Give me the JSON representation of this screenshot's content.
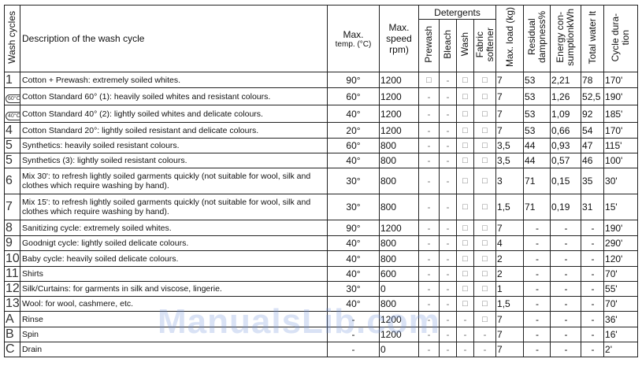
{
  "headers": {
    "wash_cycles": "Wash cycles",
    "description": "Description of the wash cycle",
    "max_temp": "Max. temp. (°C)",
    "max_temp_l1": "Max.",
    "max_temp_l2": "temp. (°C)",
    "max_speed_l1": "Max.",
    "max_speed_l2": "speed",
    "max_speed_l3": "rpm)",
    "detergents": "Detergents",
    "prewash": "Prewash",
    "bleach": "Bleach",
    "wash": "Wash",
    "fabric_softener_l1": "Fabric",
    "fabric_softener_l2": "softener",
    "max_load": "Max. load (kg)",
    "residual_l1": "Residual",
    "residual_l2": "dampness%",
    "energy_l1": "Energy con-",
    "energy_l2": "sumptionkWh",
    "total_water": "Total water lt",
    "cycle_dur_l1": "Cycle dura-",
    "cycle_dur_l2": "tion"
  },
  "rows": [
    {
      "num": "1",
      "icon": "",
      "desc": "Cotton + Prewash: extremely soiled whites.",
      "temp": "90°",
      "speed": "1200",
      "pre": "□",
      "bleach": "-",
      "wash": "□",
      "soft": "□",
      "load": "7",
      "resid": "53",
      "energy": "2,21",
      "water": "78",
      "dur": "170'"
    },
    {
      "num": "",
      "icon": "60°C",
      "desc": "Cotton Standard 60° (1): heavily soiled whites and resistant colours.",
      "temp": "60°",
      "speed": "1200",
      "pre": "-",
      "bleach": "-",
      "wash": "□",
      "soft": "□",
      "load": "7",
      "resid": "53",
      "energy": "1,26",
      "water": "52,5",
      "dur": "190'"
    },
    {
      "num": "",
      "icon": "40°C",
      "desc": "Cotton Standard 40° (2): lightly soiled whites and delicate colours.",
      "temp": "40°",
      "speed": "1200",
      "pre": "-",
      "bleach": "-",
      "wash": "□",
      "soft": "□",
      "load": "7",
      "resid": "53",
      "energy": "1,09",
      "water": "92",
      "dur": "185'"
    },
    {
      "num": "4",
      "icon": "",
      "desc": "Cotton Standard 20°: lightly soiled resistant and delicate colours.",
      "temp": "20°",
      "speed": "1200",
      "pre": "-",
      "bleach": "-",
      "wash": "□",
      "soft": "□",
      "load": "7",
      "resid": "53",
      "energy": "0,66",
      "water": "54",
      "dur": "170'"
    },
    {
      "num": "5",
      "icon": "",
      "desc": "Synthetics: heavily soiled resistant colours.",
      "temp": "60°",
      "speed": "800",
      "pre": "-",
      "bleach": "-",
      "wash": "□",
      "soft": "□",
      "load": "3,5",
      "resid": "44",
      "energy": "0,93",
      "water": "47",
      "dur": "115'"
    },
    {
      "num": "5",
      "icon": "",
      "desc": "Synthetics (3): lightly soiled resistant colours.",
      "temp": "40°",
      "speed": "800",
      "pre": "-",
      "bleach": "-",
      "wash": "□",
      "soft": "□",
      "load": "3,5",
      "resid": "44",
      "energy": "0,57",
      "water": "46",
      "dur": "100'"
    },
    {
      "num": "6",
      "icon": "",
      "desc": "Mix 30': to refresh lightly soiled garments quickly (not suitable for wool, silk and clothes which require washing by hand).",
      "temp": "30°",
      "speed": "800",
      "pre": "-",
      "bleach": "-",
      "wash": "□",
      "soft": "□",
      "load": "3",
      "resid": "71",
      "energy": "0,15",
      "water": "35",
      "dur": "30'"
    },
    {
      "num": "7",
      "icon": "",
      "desc": "Mix 15': to refresh lightly soiled garments quickly (not suitable for wool, silk and clothes which require washing by hand).",
      "temp": "30°",
      "speed": "800",
      "pre": "-",
      "bleach": "-",
      "wash": "□",
      "soft": "□",
      "load": "1,5",
      "resid": "71",
      "energy": "0,19",
      "water": "31",
      "dur": "15'"
    },
    {
      "num": "8",
      "icon": "",
      "desc": "Sanitizing cycle: extremely soiled whites.",
      "temp": "90°",
      "speed": "1200",
      "pre": "-",
      "bleach": "-",
      "wash": "□",
      "soft": "□",
      "load": "7",
      "resid": "-",
      "energy": "-",
      "water": "-",
      "dur": "190'"
    },
    {
      "num": "9",
      "icon": "",
      "desc": "Goodnigt cycle: lightly soiled delicate colours.",
      "temp": "40°",
      "speed": "800",
      "pre": "-",
      "bleach": "-",
      "wash": "□",
      "soft": "□",
      "load": "4",
      "resid": "-",
      "energy": "-",
      "water": "-",
      "dur": "290'"
    },
    {
      "num": "10",
      "icon": "",
      "desc": "Baby cycle: heavily soiled delicate colours.",
      "temp": "40°",
      "speed": "800",
      "pre": "-",
      "bleach": "-",
      "wash": "□",
      "soft": "□",
      "load": "2",
      "resid": "-",
      "energy": "-",
      "water": "-",
      "dur": "120'"
    },
    {
      "num": "11",
      "icon": "",
      "desc": "Shirts",
      "temp": "40°",
      "speed": "600",
      "pre": "-",
      "bleach": "-",
      "wash": "□",
      "soft": "□",
      "load": "2",
      "resid": "-",
      "energy": "-",
      "water": "-",
      "dur": "70'"
    },
    {
      "num": "12",
      "icon": "",
      "desc": "Silk/Curtains: for garments in silk and viscose, lingerie.",
      "temp": "30°",
      "speed": "0",
      "pre": "-",
      "bleach": "-",
      "wash": "□",
      "soft": "□",
      "load": "1",
      "resid": "-",
      "energy": "-",
      "water": "-",
      "dur": "55'"
    },
    {
      "num": "13",
      "icon": "",
      "desc": "Wool: for wool, cashmere, etc.",
      "temp": "40°",
      "speed": "800",
      "pre": "-",
      "bleach": "-",
      "wash": "□",
      "soft": "□",
      "load": "1,5",
      "resid": "-",
      "energy": "-",
      "water": "-",
      "dur": "70'"
    },
    {
      "num": "A",
      "icon": "",
      "desc": "Rinse",
      "temp": "-",
      "speed": "1200",
      "pre": "-",
      "bleach": "-",
      "wash": "-",
      "soft": "□",
      "load": "7",
      "resid": "-",
      "energy": "-",
      "water": "-",
      "dur": "36'"
    },
    {
      "num": "B",
      "icon": "",
      "desc": "Spin",
      "temp": "-",
      "speed": "1200",
      "pre": "-",
      "bleach": "-",
      "wash": "-",
      "soft": "-",
      "load": "7",
      "resid": "-",
      "energy": "-",
      "water": "-",
      "dur": "16'"
    },
    {
      "num": "C",
      "icon": "",
      "desc": "Drain",
      "temp": "-",
      "speed": "0",
      "pre": "-",
      "bleach": "-",
      "wash": "-",
      "soft": "-",
      "load": "7",
      "resid": "-",
      "energy": "-",
      "water": "-",
      "dur": "2'"
    }
  ],
  "watermark": "ManualsLib.com"
}
